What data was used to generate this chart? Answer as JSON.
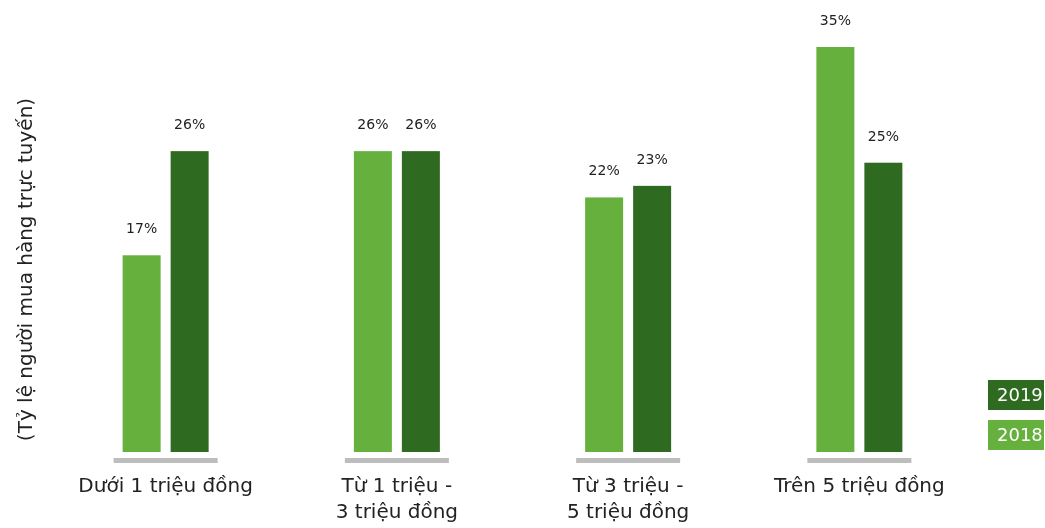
{
  "chart_data": {
    "type": "bar",
    "ylabel": "(Tỷ lệ người mua hàng trực tuyến)",
    "categories": [
      "Dưới 1 triệu đồng",
      "Từ 1 triệu - 3 triệu đồng",
      "Từ 3 triệu - 5 triệu đồng",
      "Trên 5 triệu đồng"
    ],
    "series": [
      {
        "name": "2018",
        "color": "#66b03e",
        "values": [
          17,
          26,
          22,
          35
        ],
        "value_labels": [
          "17%",
          "26%",
          "22%",
          "35%"
        ]
      },
      {
        "name": "2019",
        "color": "#2e6a1f",
        "values": [
          26,
          26,
          23,
          25
        ],
        "value_labels": [
          "26%",
          "26%",
          "23%",
          "25%"
        ]
      }
    ],
    "legend": "bottom right"
  }
}
